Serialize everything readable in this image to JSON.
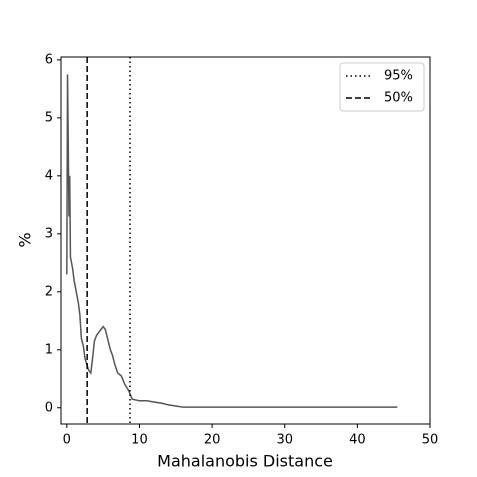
{
  "chart_data": {
    "type": "line",
    "x_label": "Mahalanobis Distance",
    "y_label": "%",
    "x": [
      0.0,
      0.1,
      0.3,
      0.4,
      0.5,
      0.8,
      1.0,
      1.3,
      1.6,
      1.8,
      2.0,
      2.3,
      2.5,
      3.0,
      3.3,
      3.5,
      3.8,
      4.1,
      4.4,
      4.7,
      5.0,
      5.3,
      5.6,
      6.0,
      6.3,
      6.6,
      7.0,
      7.5,
      8.0,
      8.5,
      9.0,
      10.0,
      11.0,
      12.0,
      13.0,
      14.0,
      15.0,
      16.0,
      20.0,
      45.5
    ],
    "series": [
      {
        "color": "#555555",
        "values": [
          2.3,
          5.75,
          3.3,
          4.0,
          2.6,
          2.4,
          2.2,
          2.0,
          1.8,
          1.6,
          1.2,
          1.05,
          0.85,
          0.65,
          0.6,
          0.8,
          1.15,
          1.25,
          1.3,
          1.35,
          1.4,
          1.35,
          1.2,
          1.0,
          0.9,
          0.75,
          0.6,
          0.55,
          0.4,
          0.3,
          0.15,
          0.12,
          0.12,
          0.1,
          0.08,
          0.05,
          0.03,
          0.01,
          0.01,
          0.01
        ]
      }
    ],
    "vlines": [
      {
        "name": "95%",
        "x": 8.7,
        "style": "dotted"
      },
      {
        "name": "50%",
        "x": 2.8,
        "style": "dashed"
      }
    ],
    "xlim": [
      -0.8,
      50
    ],
    "ylim": [
      -0.28,
      6.05
    ],
    "xticks": [
      0,
      10,
      20,
      30,
      40,
      50
    ],
    "yticks": [
      0,
      1,
      2,
      3,
      4,
      5,
      6
    ],
    "legend": "upper right"
  }
}
